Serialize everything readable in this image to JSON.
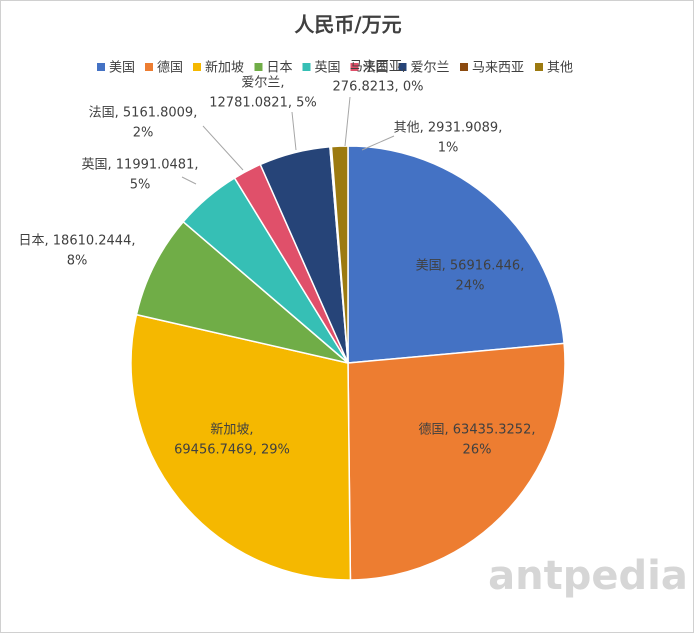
{
  "chart_data": {
    "type": "pie",
    "title": "人民币/万元",
    "categories": [
      "美国",
      "德国",
      "新加坡",
      "日本",
      "英国",
      "法国",
      "爱尔兰",
      "马来西亚",
      "其他"
    ],
    "values": [
      56916.446,
      63435.3252,
      69456.7469,
      18610.2444,
      11991.0481,
      5161.8009,
      12781.0821,
      276.8213,
      2931.9089
    ],
    "value_labels": [
      [
        "美国, 56916.446,",
        "24%"
      ],
      [
        "德国, 63435.3252,",
        "26%"
      ],
      [
        "新加坡,",
        "69456.7469, 29%"
      ],
      [
        "日本, 18610.2444,",
        "8%"
      ],
      [
        "英国, 11991.0481,",
        "5%"
      ],
      [
        "法国, 5161.8009,",
        "2%"
      ],
      [
        "爱尔兰,",
        "12781.0821, 5%"
      ],
      [
        "马来西亚,",
        "276.8213, 0%"
      ],
      [
        "其他, 2931.9089,",
        "1%"
      ]
    ],
    "colors": [
      "#4472c4",
      "#ed7d31",
      "#f5b800",
      "#70ad47",
      "#36bfb5",
      "#e0506a",
      "#264478",
      "#8b4a0f",
      "#9c7a10"
    ],
    "legend": "top",
    "watermark": "antpedia"
  }
}
